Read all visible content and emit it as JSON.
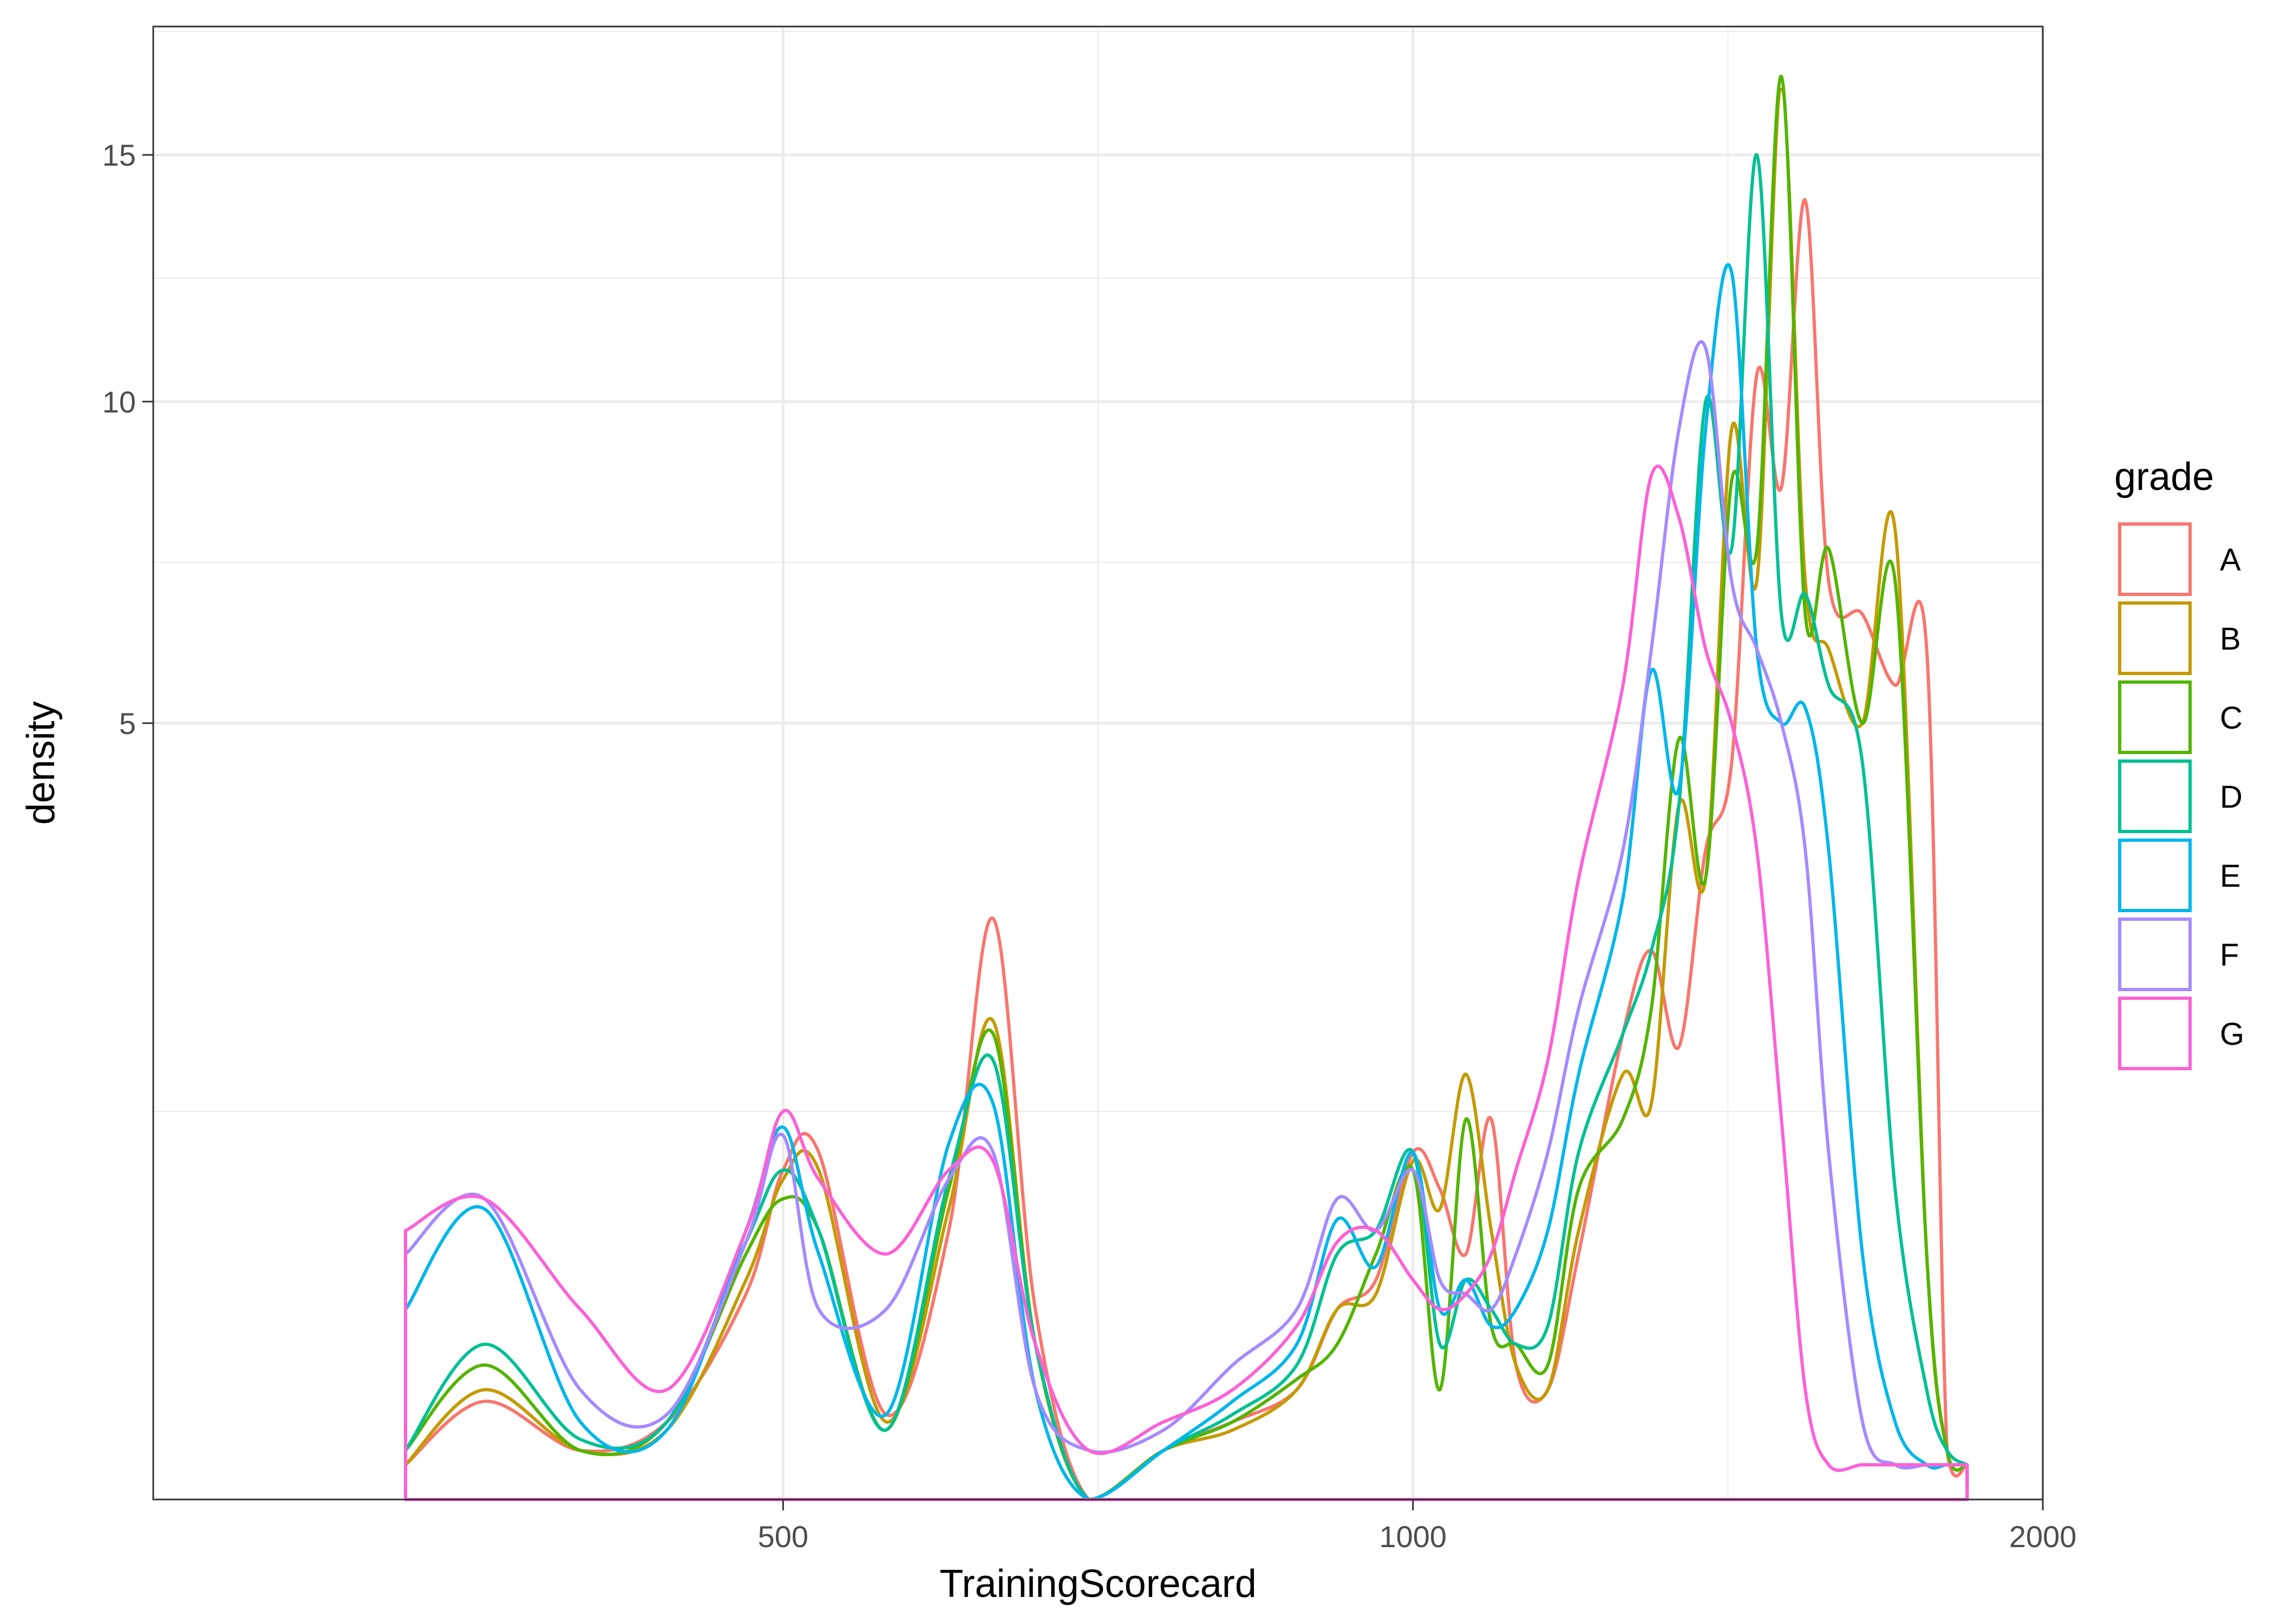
{
  "chart_data": {
    "type": "line",
    "title": "",
    "xlabel": "TrainingScorecard",
    "ylabel": "density",
    "x_scale": "log",
    "y_scale": "sqrt",
    "xlim": [
      250,
      2000
    ],
    "ylim": [
      0,
      18
    ],
    "x_ticks": [
      500,
      1000,
      2000
    ],
    "x_tick_labels": [
      "500",
      "1000",
      "2000"
    ],
    "y_ticks": [
      5,
      10,
      15
    ],
    "y_tick_labels": [
      "5",
      "10",
      "15"
    ],
    "grid": true,
    "legend": {
      "title": "grade",
      "position": "right"
    },
    "series": [
      {
        "name": "A",
        "color": "#F8766D",
        "x": [
          330,
          360,
          400,
          440,
          480,
          500,
          520,
          560,
          600,
          630,
          660,
          700,
          760,
          820,
          880,
          920,
          960,
          1000,
          1030,
          1060,
          1090,
          1120,
          1160,
          1200,
          1260,
          1300,
          1340,
          1380,
          1420,
          1460,
          1500,
          1540,
          1580,
          1640,
          1700,
          1760,
          1800,
          1840
        ],
        "y": [
          0.01,
          0.08,
          0.02,
          0.05,
          0.35,
          0.9,
          1.0,
          0.06,
          0.6,
          2.8,
          0.3,
          0.0,
          0.02,
          0.05,
          0.1,
          0.3,
          0.4,
          1.0,
          0.8,
          0.5,
          1.2,
          0.15,
          0.1,
          0.5,
          1.8,
          2.5,
          1.7,
          3.5,
          4.5,
          10.5,
          8.5,
          14.0,
          7.0,
          6.5,
          5.5,
          6.0,
          0.02,
          0.01
        ]
      },
      {
        "name": "B",
        "color": "#C49A00",
        "x": [
          330,
          360,
          400,
          440,
          480,
          500,
          520,
          560,
          600,
          630,
          660,
          700,
          760,
          820,
          880,
          920,
          960,
          1000,
          1030,
          1060,
          1090,
          1120,
          1160,
          1200,
          1260,
          1300,
          1340,
          1380,
          1420,
          1460,
          1500,
          1540,
          1580,
          1640,
          1700,
          1760,
          1800,
          1840
        ],
        "y": [
          0.01,
          0.1,
          0.02,
          0.04,
          0.4,
          0.85,
          0.9,
          0.05,
          0.7,
          1.9,
          0.2,
          0.0,
          0.02,
          0.04,
          0.1,
          0.3,
          0.35,
          0.95,
          0.7,
          1.5,
          0.6,
          0.15,
          0.1,
          0.6,
          1.5,
          1.3,
          4.0,
          3.2,
          9.5,
          7.0,
          16.5,
          7.0,
          6.0,
          5.0,
          7.8,
          0.5,
          0.02,
          0.01
        ]
      },
      {
        "name": "C",
        "color": "#53B400",
        "x": [
          330,
          360,
          400,
          440,
          480,
          500,
          520,
          560,
          600,
          630,
          660,
          700,
          760,
          820,
          880,
          920,
          960,
          1000,
          1030,
          1060,
          1090,
          1120,
          1160,
          1200,
          1260,
          1300,
          1340,
          1380,
          1420,
          1460,
          1500,
          1540,
          1580,
          1640,
          1700,
          1760,
          1800,
          1840
        ],
        "y": [
          0.02,
          0.15,
          0.02,
          0.05,
          0.5,
          0.75,
          0.6,
          0.04,
          0.8,
          1.8,
          0.2,
          0.0,
          0.02,
          0.05,
          0.12,
          0.2,
          0.5,
          0.9,
          0.1,
          1.2,
          0.25,
          0.2,
          0.15,
          0.8,
          1.2,
          2.0,
          4.8,
          3.2,
          8.6,
          7.5,
          16.8,
          6.5,
          7.5,
          5.0,
          7.0,
          0.5,
          0.02,
          0.01
        ]
      },
      {
        "name": "D",
        "color": "#00C094",
        "x": [
          330,
          360,
          400,
          440,
          480,
          500,
          520,
          560,
          600,
          630,
          660,
          700,
          760,
          820,
          880,
          920,
          960,
          1000,
          1030,
          1060,
          1090,
          1120,
          1160,
          1200,
          1260,
          1300,
          1340,
          1380,
          1420,
          1460,
          1500,
          1540,
          1580,
          1640,
          1700,
          1760,
          1800,
          1840
        ],
        "y": [
          0.02,
          0.2,
          0.03,
          0.05,
          0.55,
          0.9,
          0.6,
          0.04,
          0.85,
          1.6,
          0.2,
          0.0,
          0.02,
          0.06,
          0.15,
          0.5,
          0.6,
          1.0,
          0.2,
          0.4,
          0.3,
          0.2,
          0.25,
          1.0,
          1.8,
          2.5,
          4.0,
          10.0,
          7.5,
          15.0,
          6.5,
          6.8,
          5.5,
          4.5,
          0.8,
          0.1,
          0.02,
          0.01
        ]
      },
      {
        "name": "E",
        "color": "#00B6EB",
        "x": [
          330,
          360,
          400,
          440,
          480,
          500,
          520,
          560,
          600,
          630,
          660,
          700,
          760,
          820,
          880,
          920,
          960,
          1000,
          1030,
          1060,
          1090,
          1120,
          1160,
          1200,
          1260,
          1300,
          1340,
          1380,
          1420,
          1460,
          1500,
          1540,
          1580,
          1640,
          1700,
          1760,
          1800,
          1840
        ],
        "y": [
          0.3,
          0.7,
          0.05,
          0.04,
          0.6,
          1.15,
          0.5,
          0.06,
          1.05,
          1.3,
          0.1,
          0.0,
          0.02,
          0.08,
          0.2,
          0.65,
          0.45,
          1.0,
          0.3,
          0.4,
          0.25,
          0.3,
          0.6,
          1.5,
          3.0,
          5.7,
          4.2,
          9.5,
          12.5,
          6.0,
          5.0,
          5.2,
          3.5,
          0.5,
          0.05,
          0.01,
          0.01,
          0.01
        ]
      },
      {
        "name": "F",
        "color": "#A58AFF",
        "x": [
          330,
          360,
          400,
          440,
          480,
          500,
          520,
          560,
          600,
          630,
          660,
          700,
          760,
          820,
          880,
          920,
          960,
          1000,
          1030,
          1060,
          1090,
          1120,
          1160,
          1200,
          1260,
          1300,
          1340,
          1380,
          1420,
          1460,
          1500,
          1540,
          1580,
          1640,
          1700,
          1760,
          1800,
          1840
        ],
        "y": [
          0.5,
          0.75,
          0.1,
          0.06,
          0.55,
          1.1,
          0.3,
          0.3,
          0.85,
          1.0,
          0.1,
          0.02,
          0.04,
          0.15,
          0.3,
          0.75,
          0.6,
          0.9,
          0.4,
          0.35,
          0.3,
          0.5,
          1.0,
          2.0,
          3.5,
          6.0,
          9.5,
          11.0,
          7.0,
          6.0,
          5.0,
          3.5,
          1.0,
          0.05,
          0.01,
          0.01,
          0.01,
          0.01
        ]
      },
      {
        "name": "G",
        "color": "#FB61D7",
        "x": [
          330,
          360,
          400,
          440,
          480,
          500,
          520,
          560,
          600,
          630,
          660,
          700,
          760,
          820,
          880,
          920,
          960,
          1000,
          1030,
          1060,
          1090,
          1120,
          1160,
          1200,
          1260,
          1300,
          1340,
          1380,
          1420,
          1460,
          1500,
          1540,
          1580,
          1640,
          1700,
          1760,
          1800,
          1840
        ],
        "y": [
          0.6,
          0.75,
          0.3,
          0.1,
          0.6,
          1.25,
          0.85,
          0.5,
          0.9,
          0.95,
          0.2,
          0.02,
          0.05,
          0.1,
          0.25,
          0.55,
          0.6,
          0.4,
          0.3,
          0.35,
          0.5,
          0.9,
          1.6,
          3.2,
          5.5,
          8.7,
          8.0,
          6.0,
          5.0,
          3.5,
          1.2,
          0.1,
          0.01,
          0.01,
          0.01,
          0.01,
          0.01,
          0.01
        ]
      }
    ]
  }
}
